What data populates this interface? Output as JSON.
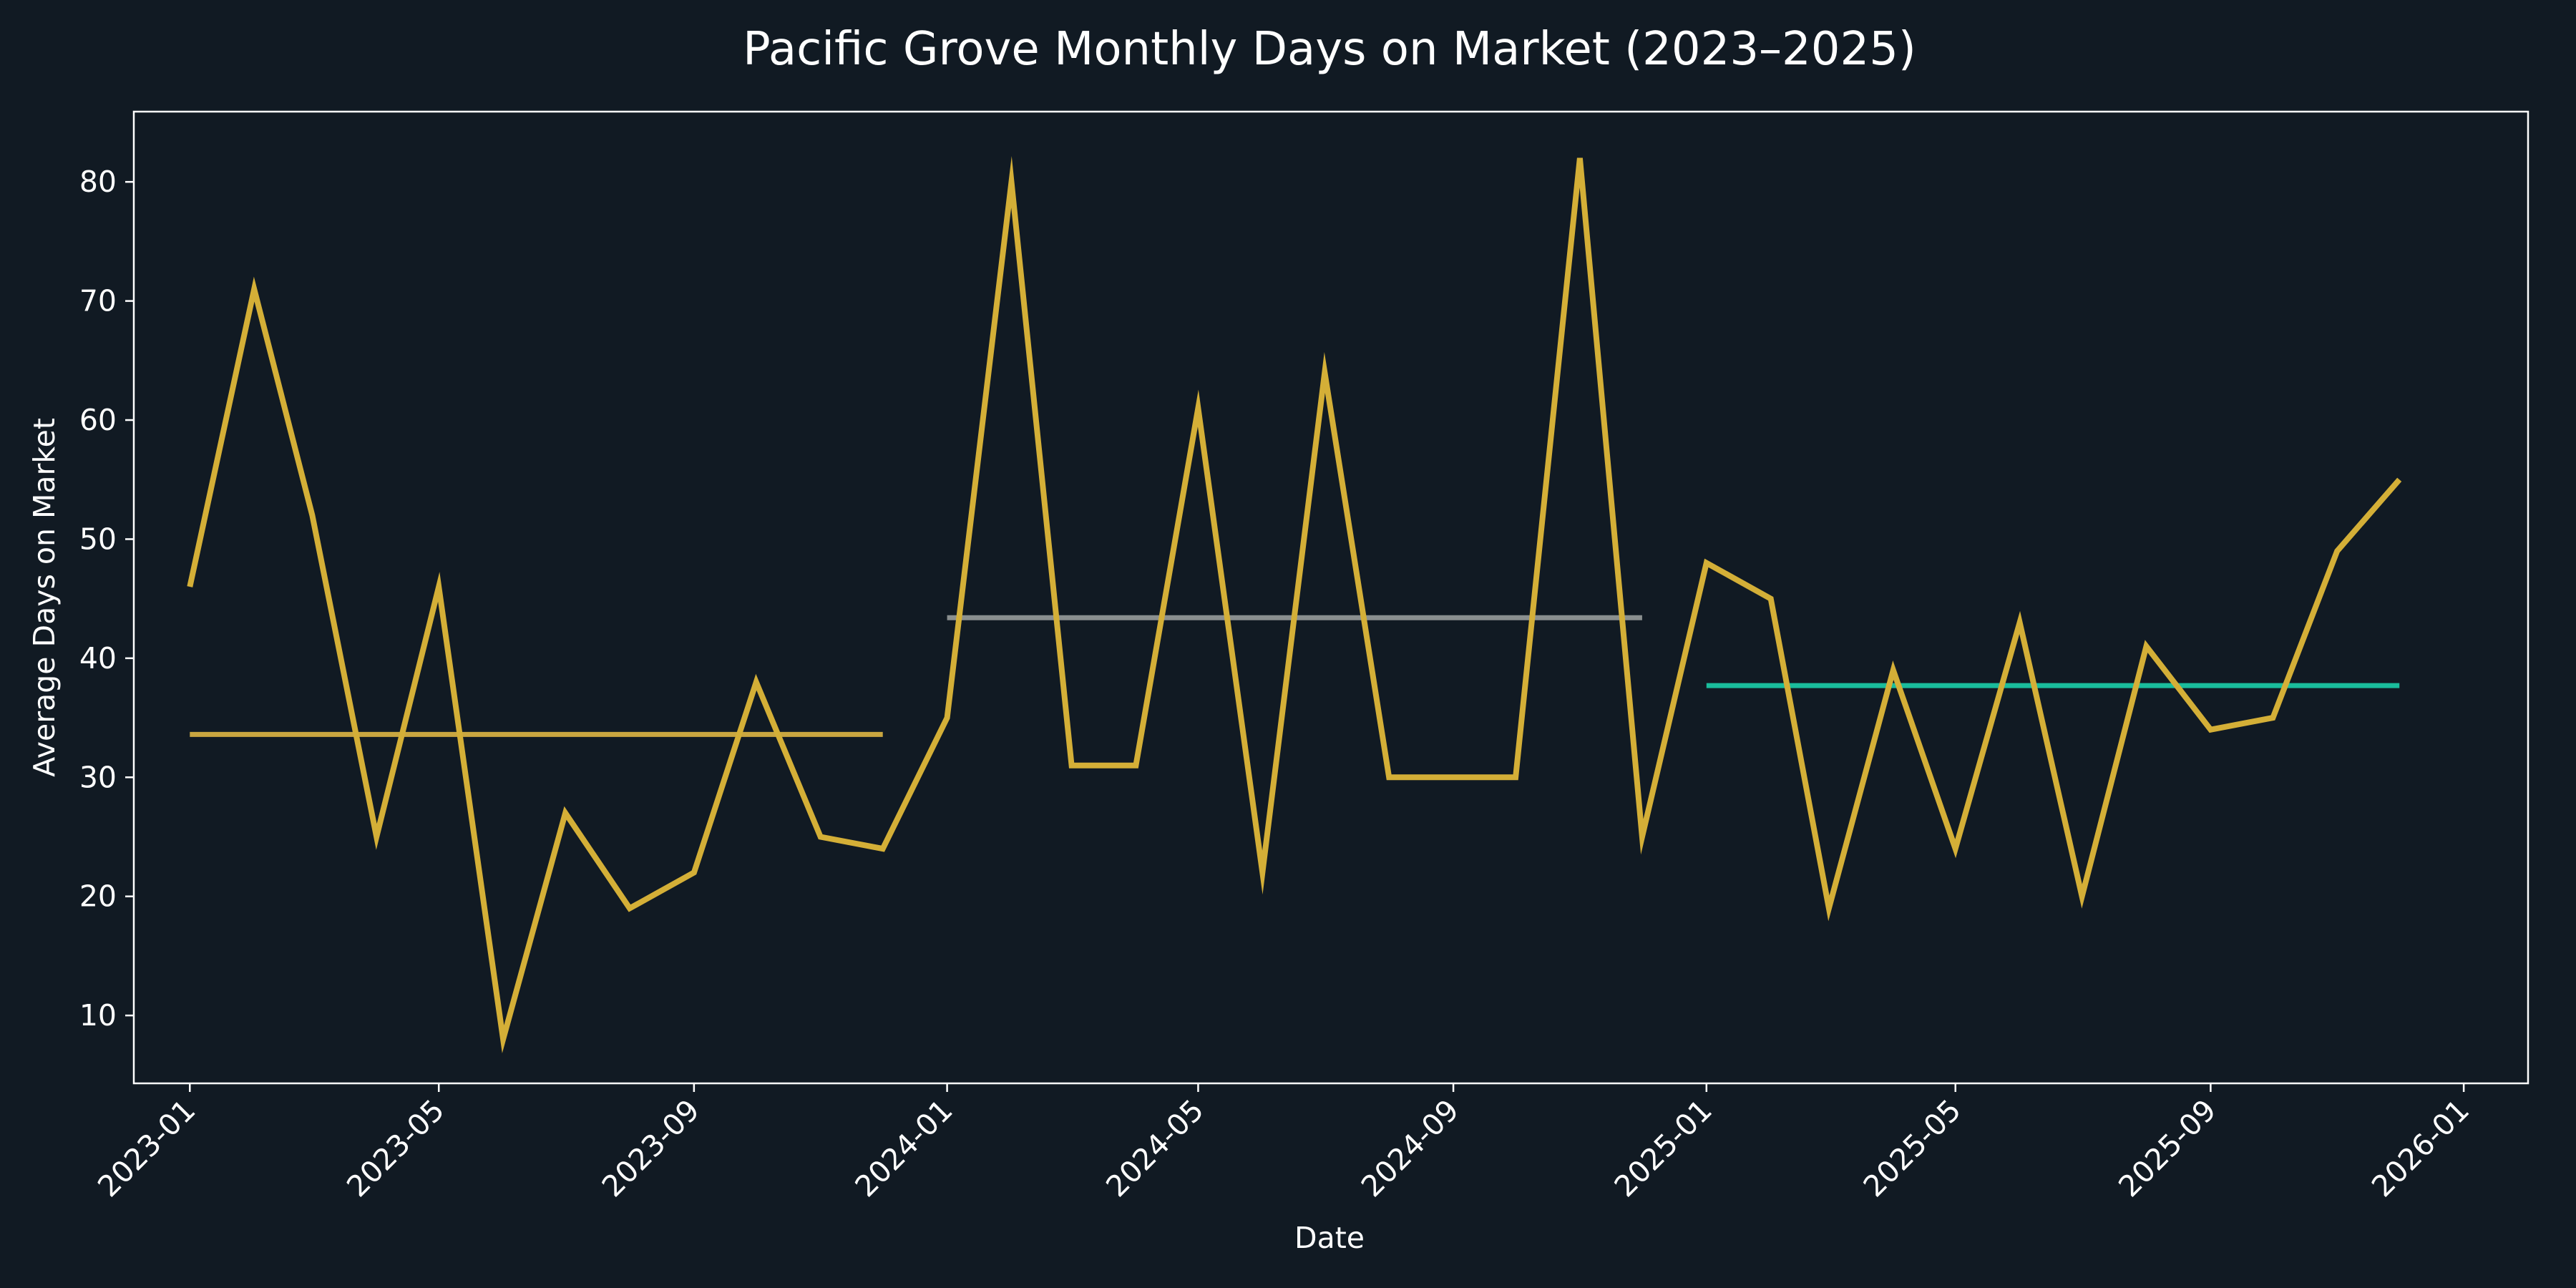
{
  "chart_data": {
    "type": "line",
    "title": "Pacific Grove Monthly Days on Market (2023–2025)",
    "xlabel": "Date",
    "ylabel": "Average Days on Market",
    "x_ticks": [
      "2023-01",
      "2023-05",
      "2023-09",
      "2024-01",
      "2024-05",
      "2024-09",
      "2025-01",
      "2025-05",
      "2025-09",
      "2026-01"
    ],
    "y_ticks": [
      10,
      20,
      30,
      40,
      50,
      60,
      70,
      80
    ],
    "xlim": [
      "2022-12-05",
      "2026-02-01"
    ],
    "ylim": [
      4.3,
      85.9
    ],
    "grid": false,
    "legend": "none",
    "colors": {
      "background": "#111a23",
      "axes": "#ffffff",
      "series": "#d4af37",
      "mean_2023": "#c9a640",
      "mean_2024": "#8a8f8f",
      "mean_2025": "#1abc9c"
    },
    "series": [
      {
        "x": [
          "2023-01",
          "2023-02",
          "2023-03",
          "2023-04",
          "2023-05",
          "2023-06",
          "2023-07",
          "2023-08",
          "2023-09",
          "2023-10",
          "2023-11",
          "2023-12",
          "2024-01",
          "2024-02",
          "2024-03",
          "2024-04",
          "2024-05",
          "2024-06",
          "2024-07",
          "2024-08",
          "2024-09",
          "2024-10",
          "2024-11",
          "2024-12",
          "2025-01",
          "2025-02",
          "2025-03",
          "2025-04",
          "2025-05",
          "2025-06",
          "2025-07",
          "2025-08",
          "2025-09",
          "2025-10",
          "2025-11",
          "2025-12"
        ],
        "values": [
          46,
          71,
          52,
          25,
          46,
          8,
          27,
          19,
          22,
          38,
          25,
          24,
          35,
          80,
          31,
          31,
          61,
          22,
          64,
          30,
          30,
          30,
          82,
          25,
          48,
          45,
          19,
          39,
          24,
          43,
          20,
          41,
          34,
          35,
          49,
          55
        ]
      }
    ],
    "reference_lines": [
      {
        "x_start": "2023-01",
        "x_end": "2023-12",
        "y": 33.6
      },
      {
        "x_start": "2024-01",
        "x_end": "2024-12",
        "y": 43.4
      },
      {
        "x_start": "2025-01",
        "x_end": "2025-12",
        "y": 37.7
      }
    ]
  }
}
